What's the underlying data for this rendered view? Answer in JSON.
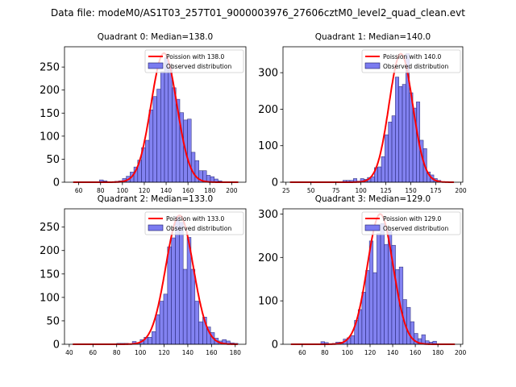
{
  "figure": {
    "suptitle": "Data file: modeM0/AS1T03_257T01_9000003976_27606cztM0_level2_quad_clean.evt"
  },
  "colors": {
    "bar_fill": "#7b7bf0",
    "bar_edge": "#1a1a66",
    "poisson_line": "#ff0000"
  },
  "chart_data": [
    {
      "type": "bar",
      "title": "Quadrant 0: Median=138.0",
      "xlabel": "",
      "ylabel": "",
      "xlim": [
        47,
        213
      ],
      "ylim": [
        0,
        294
      ],
      "xticks": [
        60,
        80,
        100,
        120,
        140,
        160,
        180,
        200
      ],
      "yticks": [
        0,
        50,
        100,
        150,
        200,
        250
      ],
      "legend": {
        "position": "top-right",
        "entries": [
          "Poission with 138.0",
          "Observed distribution"
        ]
      },
      "poisson_mean": 138.0,
      "poisson_peak": 280,
      "poisson_range": [
        55,
        206
      ],
      "bin_width": 3.5,
      "bins": [
        {
          "x": 79,
          "count": 5
        },
        {
          "x": 82.5,
          "count": 3
        },
        {
          "x": 93,
          "count": 2
        },
        {
          "x": 96.5,
          "count": 3
        },
        {
          "x": 100,
          "count": 8
        },
        {
          "x": 103.5,
          "count": 13
        },
        {
          "x": 107,
          "count": 22
        },
        {
          "x": 110.5,
          "count": 33
        },
        {
          "x": 114,
          "count": 48
        },
        {
          "x": 117.5,
          "count": 75
        },
        {
          "x": 121,
          "count": 91
        },
        {
          "x": 124.5,
          "count": 157
        },
        {
          "x": 128,
          "count": 186
        },
        {
          "x": 131.5,
          "count": 202
        },
        {
          "x": 135,
          "count": 240
        },
        {
          "x": 138.5,
          "count": 270
        },
        {
          "x": 142,
          "count": 250
        },
        {
          "x": 145.5,
          "count": 205
        },
        {
          "x": 149,
          "count": 180
        },
        {
          "x": 152.5,
          "count": 151
        },
        {
          "x": 156,
          "count": 135
        },
        {
          "x": 159.5,
          "count": 137
        },
        {
          "x": 163,
          "count": 65
        },
        {
          "x": 166.5,
          "count": 47
        },
        {
          "x": 170,
          "count": 25
        },
        {
          "x": 173.5,
          "count": 25
        },
        {
          "x": 177,
          "count": 15
        },
        {
          "x": 180.5,
          "count": 12
        },
        {
          "x": 184,
          "count": 7
        },
        {
          "x": 187.5,
          "count": 3
        }
      ]
    },
    {
      "type": "bar",
      "title": "Quadrant 1: Median=140.0",
      "xlabel": "",
      "ylabel": "",
      "xlim": [
        22,
        202
      ],
      "ylim": [
        0,
        371
      ],
      "xticks": [
        25,
        50,
        75,
        100,
        125,
        150,
        175,
        200
      ],
      "yticks": [
        0,
        100,
        200,
        300
      ],
      "legend": {
        "position": "top-right",
        "entries": [
          "Poission with 140.0",
          "Observed distribution"
        ]
      },
      "poisson_mean": 140.0,
      "poisson_peak": 352,
      "poisson_range": [
        29,
        193
      ],
      "bin_width": 3.5,
      "bins": [
        {
          "x": 82,
          "count": 5
        },
        {
          "x": 85.5,
          "count": 5
        },
        {
          "x": 89,
          "count": 5
        },
        {
          "x": 92.5,
          "count": 10
        },
        {
          "x": 96,
          "count": 3
        },
        {
          "x": 99.5,
          "count": 10
        },
        {
          "x": 103,
          "count": 8
        },
        {
          "x": 106.5,
          "count": 13
        },
        {
          "x": 110,
          "count": 15
        },
        {
          "x": 113.5,
          "count": 40
        },
        {
          "x": 117,
          "count": 42
        },
        {
          "x": 120.5,
          "count": 70
        },
        {
          "x": 124,
          "count": 130
        },
        {
          "x": 127.5,
          "count": 165
        },
        {
          "x": 131,
          "count": 182
        },
        {
          "x": 134.5,
          "count": 288
        },
        {
          "x": 138,
          "count": 262
        },
        {
          "x": 141.5,
          "count": 268
        },
        {
          "x": 145,
          "count": 352
        },
        {
          "x": 148.5,
          "count": 245
        },
        {
          "x": 152,
          "count": 203
        },
        {
          "x": 155.5,
          "count": 220
        },
        {
          "x": 159,
          "count": 115
        },
        {
          "x": 162.5,
          "count": 92
        },
        {
          "x": 166,
          "count": 28
        },
        {
          "x": 169.5,
          "count": 20
        },
        {
          "x": 173,
          "count": 10
        },
        {
          "x": 176.5,
          "count": 5
        }
      ]
    },
    {
      "type": "bar",
      "title": "Quadrant 2: Median=133.0",
      "xlabel": "",
      "ylabel": "",
      "xlim": [
        36,
        189
      ],
      "ylim": [
        0,
        289
      ],
      "xticks": [
        40,
        60,
        80,
        100,
        120,
        140,
        160,
        180
      ],
      "yticks": [
        0,
        50,
        100,
        150,
        200,
        250
      ],
      "legend": {
        "position": "top-right",
        "entries": [
          "Poission with 133.0",
          "Observed distribution"
        ]
      },
      "poisson_mean": 133.0,
      "poisson_peak": 275,
      "poisson_range": [
        43,
        182
      ],
      "bin_width": 3.3,
      "bins": [
        {
          "x": 80,
          "count": 2
        },
        {
          "x": 83.3,
          "count": 2
        },
        {
          "x": 86.6,
          "count": 2
        },
        {
          "x": 89.9,
          "count": 1
        },
        {
          "x": 93.2,
          "count": 6
        },
        {
          "x": 96.5,
          "count": 3
        },
        {
          "x": 99.8,
          "count": 10
        },
        {
          "x": 103.1,
          "count": 15
        },
        {
          "x": 106.4,
          "count": 15
        },
        {
          "x": 109.7,
          "count": 27
        },
        {
          "x": 113,
          "count": 63
        },
        {
          "x": 116.3,
          "count": 92
        },
        {
          "x": 119.6,
          "count": 107
        },
        {
          "x": 122.9,
          "count": 208
        },
        {
          "x": 126.2,
          "count": 227
        },
        {
          "x": 129.5,
          "count": 273
        },
        {
          "x": 132.8,
          "count": 260
        },
        {
          "x": 136.1,
          "count": 160
        },
        {
          "x": 139.4,
          "count": 228
        },
        {
          "x": 142.7,
          "count": 160
        },
        {
          "x": 146,
          "count": 92
        },
        {
          "x": 149.3,
          "count": 48
        },
        {
          "x": 152.6,
          "count": 58
        },
        {
          "x": 155.9,
          "count": 37
        },
        {
          "x": 159.2,
          "count": 25
        },
        {
          "x": 162.5,
          "count": 13
        },
        {
          "x": 165.8,
          "count": 7
        },
        {
          "x": 169.1,
          "count": 10
        },
        {
          "x": 172.4,
          "count": 7
        },
        {
          "x": 175.7,
          "count": 3
        },
        {
          "x": 179,
          "count": 2
        }
      ]
    },
    {
      "type": "bar",
      "title": "Quadrant 3: Median=129.0",
      "xlabel": "",
      "ylabel": "",
      "xlim": [
        43,
        202
      ],
      "ylim": [
        0,
        312
      ],
      "xticks": [
        60,
        80,
        100,
        120,
        140,
        160,
        180,
        200
      ],
      "yticks": [
        0,
        100,
        200,
        300
      ],
      "legend": {
        "position": "top-right",
        "entries": [
          "Poission with 129.0",
          "Observed distribution"
        ]
      },
      "poisson_mean": 129.0,
      "poisson_peak": 300,
      "poisson_range": [
        50,
        195
      ],
      "bin_width": 3.3,
      "bins": [
        {
          "x": 76.5,
          "count": 6
        },
        {
          "x": 79.8,
          "count": 4
        },
        {
          "x": 86.4,
          "count": 2
        },
        {
          "x": 89.7,
          "count": 5
        },
        {
          "x": 93,
          "count": 5
        },
        {
          "x": 96.3,
          "count": 12
        },
        {
          "x": 99.6,
          "count": 15
        },
        {
          "x": 102.9,
          "count": 20
        },
        {
          "x": 106.2,
          "count": 55
        },
        {
          "x": 109.5,
          "count": 80
        },
        {
          "x": 112.8,
          "count": 120
        },
        {
          "x": 116.1,
          "count": 170
        },
        {
          "x": 119.4,
          "count": 238
        },
        {
          "x": 122.7,
          "count": 165
        },
        {
          "x": 126,
          "count": 255
        },
        {
          "x": 129.3,
          "count": 278
        },
        {
          "x": 132.6,
          "count": 230
        },
        {
          "x": 135.9,
          "count": 260
        },
        {
          "x": 139.2,
          "count": 228
        },
        {
          "x": 142.5,
          "count": 172
        },
        {
          "x": 145.8,
          "count": 178
        },
        {
          "x": 149.1,
          "count": 103
        },
        {
          "x": 152.4,
          "count": 85
        },
        {
          "x": 155.7,
          "count": 52
        },
        {
          "x": 159,
          "count": 25
        },
        {
          "x": 162.3,
          "count": 13
        },
        {
          "x": 165.6,
          "count": 22
        },
        {
          "x": 168.9,
          "count": 8
        },
        {
          "x": 172.2,
          "count": 5
        },
        {
          "x": 175.5,
          "count": 7
        }
      ]
    }
  ]
}
